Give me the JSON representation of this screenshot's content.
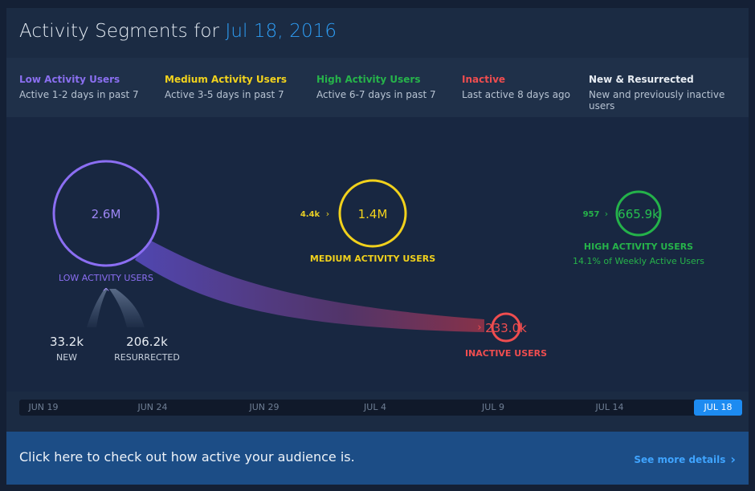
{
  "header": {
    "title_prefix": "Activity Segments for",
    "title_date": "Jul 18, 2016"
  },
  "legend": [
    {
      "title": "Low Activity Users",
      "desc": "Active 1-2 days in past 7",
      "color": "#8a6ff0"
    },
    {
      "title": "Medium Activity Users",
      "desc": "Active 3-5 days in past 7",
      "color": "#f2d31d"
    },
    {
      "title": "High Activity Users",
      "desc": "Active 6-7 days in past 7",
      "color": "#26b34a"
    },
    {
      "title": "Inactive",
      "desc": "Last active 8 days ago",
      "color": "#ef4d4f"
    },
    {
      "title": "New & Resurrected",
      "desc": "New and previously inactive users",
      "color": "#e8edf3"
    }
  ],
  "segments": {
    "low": {
      "value": "2.6M",
      "label": "LOW ACTIVITY USERS"
    },
    "medium": {
      "value": "1.4M",
      "label": "MEDIUM ACTIVITY USERS"
    },
    "high": {
      "value": "665.9k",
      "label": "HIGH ACTIVITY USERS",
      "sub": "14.1% of Weekly Active Users"
    },
    "inactive": {
      "value": "233.0k",
      "label": "INACTIVE USERS"
    }
  },
  "flows": {
    "low_to_medium": "4.4k",
    "medium_to_high": "957"
  },
  "inflows": {
    "new_value": "33.2k",
    "new_label": "NEW",
    "resurrected_value": "206.2k",
    "resurrected_label": "RESURRECTED"
  },
  "timeline": {
    "ticks": [
      "JUN 19",
      "JUN 24",
      "JUN 29",
      "JUL 4",
      "JUL 9",
      "JUL 14"
    ],
    "active": "JUL 18"
  },
  "footer": {
    "message": "Click here to check out how active your audience is.",
    "link": "See more details"
  }
}
